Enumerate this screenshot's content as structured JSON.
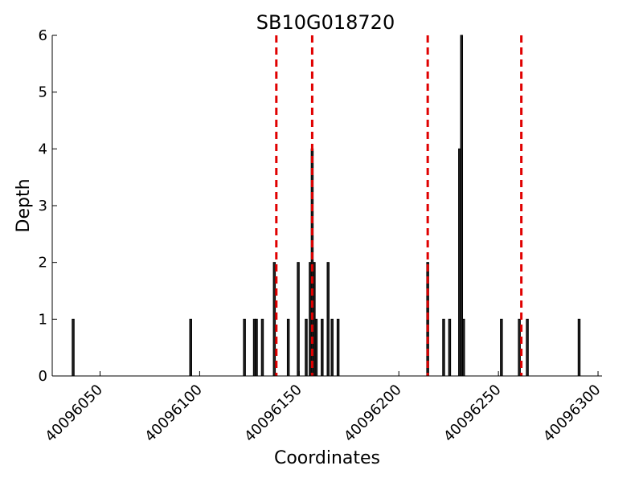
{
  "chart_data": {
    "type": "bar",
    "title": "SB10G018720",
    "xlabel": "Coordinates",
    "ylabel": "Depth",
    "xlim": [
      40096026,
      40096302
    ],
    "ylim": [
      0,
      6
    ],
    "xticks": [
      40096050,
      40096100,
      40096150,
      40096200,
      40096250,
      40096300
    ],
    "yticks": [
      0,
      1,
      2,
      3,
      4,
      5,
      6
    ],
    "grid": false,
    "bar_width": 1,
    "bars": [
      {
        "x": 40096036,
        "y": 1
      },
      {
        "x": 40096095,
        "y": 1
      },
      {
        "x": 40096122,
        "y": 1
      },
      {
        "x": 40096127,
        "y": 1
      },
      {
        "x": 40096128,
        "y": 1
      },
      {
        "x": 40096131,
        "y": 1
      },
      {
        "x": 40096137,
        "y": 2
      },
      {
        "x": 40096144,
        "y": 1
      },
      {
        "x": 40096149,
        "y": 2
      },
      {
        "x": 40096153,
        "y": 1
      },
      {
        "x": 40096155,
        "y": 2
      },
      {
        "x": 40096156,
        "y": 4
      },
      {
        "x": 40096157,
        "y": 2
      },
      {
        "x": 40096158,
        "y": 1
      },
      {
        "x": 40096161,
        "y": 1
      },
      {
        "x": 40096164,
        "y": 2
      },
      {
        "x": 40096166,
        "y": 1
      },
      {
        "x": 40096169,
        "y": 1
      },
      {
        "x": 40096214,
        "y": 2
      },
      {
        "x": 40096222,
        "y": 1
      },
      {
        "x": 40096225,
        "y": 1
      },
      {
        "x": 40096230,
        "y": 4
      },
      {
        "x": 40096231,
        "y": 6
      },
      {
        "x": 40096232,
        "y": 1
      },
      {
        "x": 40096251,
        "y": 1
      },
      {
        "x": 40096260,
        "y": 1
      },
      {
        "x": 40096264,
        "y": 1
      },
      {
        "x": 40096290,
        "y": 1
      }
    ],
    "vlines": {
      "color": "#e00000",
      "style": "dashed",
      "x": [
        40096138,
        40096156,
        40096214,
        40096261
      ]
    }
  }
}
